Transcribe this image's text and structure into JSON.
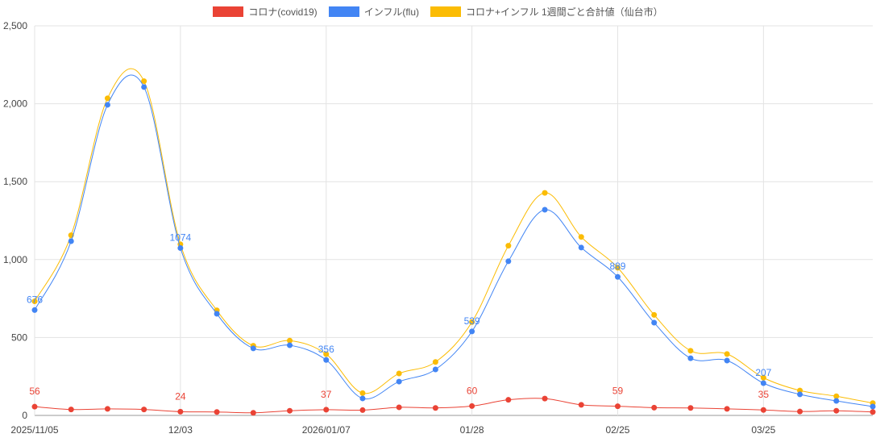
{
  "chart_data": {
    "type": "line",
    "title": "",
    "xlabel": "",
    "ylabel": "",
    "ylim": [
      0,
      2500
    ],
    "yticks": [
      0,
      500,
      1000,
      1500,
      2000,
      2500
    ],
    "ytick_labels": [
      "0",
      "500",
      "1,000",
      "1,500",
      "2,000",
      "2,500"
    ],
    "xtick_labels": [
      {
        "index": 0,
        "label": "2025/11/05"
      },
      {
        "index": 4,
        "label": "12/03"
      },
      {
        "index": 8,
        "label": "2026/01/07"
      },
      {
        "index": 12,
        "label": "01/28"
      },
      {
        "index": 16,
        "label": "02/25"
      },
      {
        "index": 20,
        "label": "03/25"
      }
    ],
    "grid": true,
    "legend_position": "top",
    "label_every": 4,
    "series": [
      {
        "name": "コロナ(covid19)",
        "color": "#ea4335",
        "values": [
          56,
          38,
          42,
          38,
          24,
          22,
          17,
          30,
          37,
          34,
          52,
          48,
          60,
          100,
          108,
          68,
          59,
          50,
          48,
          42,
          35,
          25,
          30,
          22
        ]
      },
      {
        "name": "インフル(flu)",
        "color": "#4285f4",
        "values": [
          676,
          1118,
          1993,
          2107,
          1074,
          652,
          430,
          450,
          356,
          109,
          217,
          295,
          539,
          989,
          1320,
          1077,
          889,
          595,
          367,
          352,
          207,
          135,
          93,
          57
        ]
      },
      {
        "name": "コロナ+インフル 1週間ごと合計値（仙台市）",
        "color": "#fbbc04",
        "values": [
          732,
          1156,
          2035,
          2145,
          1098,
          674,
          447,
          480,
          393,
          143,
          269,
          343,
          599,
          1089,
          1428,
          1145,
          948,
          645,
          415,
          394,
          242,
          160,
          123,
          79
        ]
      }
    ]
  }
}
